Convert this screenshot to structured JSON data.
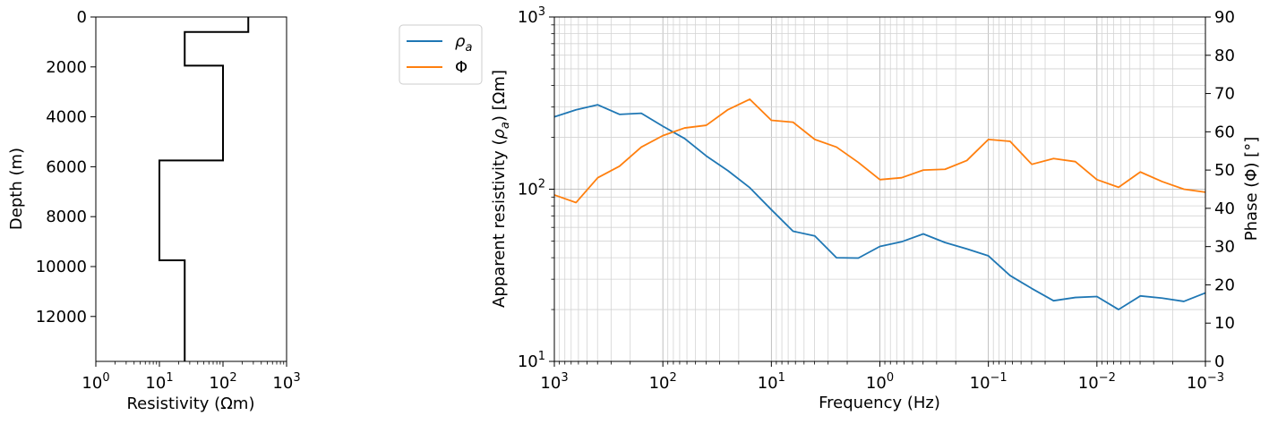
{
  "chart_data": [
    {
      "type": "line",
      "title": "",
      "xlabel": "Resistivity (Ωm)",
      "ylabel": "Depth (m)",
      "xscale": "log",
      "xlim": [
        1,
        1000
      ],
      "ylim": [
        13800,
        0
      ],
      "x_ticks": [
        1,
        10,
        100,
        1000
      ],
      "x_tick_labels": [
        {
          "base": "10",
          "exp": "0"
        },
        {
          "base": "10",
          "exp": "1"
        },
        {
          "base": "10",
          "exp": "2"
        },
        {
          "base": "10",
          "exp": "3"
        }
      ],
      "y_ticks": [
        0,
        2000,
        4000,
        6000,
        8000,
        10000,
        12000
      ],
      "y_tick_labels": [
        "0",
        "2000",
        "4000",
        "6000",
        "8000",
        "10000",
        "12000"
      ],
      "grid": false,
      "series": [
        {
          "color": "#000000",
          "step_profile": [
            {
              "depth": 0,
              "resistivity": 250
            },
            {
              "depth": 600,
              "resistivity": 250
            },
            {
              "depth": 600,
              "resistivity": 25
            },
            {
              "depth": 1950,
              "resistivity": 25
            },
            {
              "depth": 1950,
              "resistivity": 100
            },
            {
              "depth": 5750,
              "resistivity": 100
            },
            {
              "depth": 5750,
              "resistivity": 10
            },
            {
              "depth": 9750,
              "resistivity": 10
            },
            {
              "depth": 9750,
              "resistivity": 25
            },
            {
              "depth": 13800,
              "resistivity": 25
            }
          ]
        }
      ]
    },
    {
      "type": "line",
      "title": "",
      "xlabel": "Frequency (Hz)",
      "ylabel": "Apparent resistivity (ρa) [Ωm]",
      "ylabel_parts": {
        "pre": "Apparent resistivity (",
        "sym": "ρ",
        "sub": "a",
        "post": ") [Ωm]"
      },
      "y2label": "Phase (Φ) [°]",
      "xscale": "log",
      "x_reversed": true,
      "xlim": [
        1000,
        0.001
      ],
      "yscale": "log",
      "ylim": [
        10,
        1000
      ],
      "y2lim": [
        0,
        90
      ],
      "grid": true,
      "legend_position": "outside upper-left",
      "x_ticks": [
        1000,
        100,
        10,
        1,
        0.1,
        0.01,
        0.001
      ],
      "x_tick_labels": [
        {
          "base": "10",
          "exp": "3"
        },
        {
          "base": "10",
          "exp": "2"
        },
        {
          "base": "10",
          "exp": "1"
        },
        {
          "base": "10",
          "exp": "0"
        },
        {
          "base": "10",
          "exp": "−1"
        },
        {
          "base": "10",
          "exp": "−2"
        },
        {
          "base": "10",
          "exp": "−3"
        }
      ],
      "y_ticks": [
        10,
        100,
        1000
      ],
      "y_tick_labels": [
        {
          "base": "10",
          "exp": "1"
        },
        {
          "base": "10",
          "exp": "2"
        },
        {
          "base": "10",
          "exp": "3"
        }
      ],
      "y2_ticks": [
        0,
        10,
        20,
        30,
        40,
        50,
        60,
        70,
        80,
        90
      ],
      "y2_tick_labels": [
        "0",
        "10",
        "20",
        "30",
        "40",
        "50",
        "60",
        "70",
        "80",
        "90"
      ],
      "frequencies": [
        1000,
        631,
        398,
        251,
        158,
        100,
        63.1,
        39.8,
        25.1,
        15.8,
        10,
        6.31,
        3.98,
        2.51,
        1.58,
        1,
        0.631,
        0.398,
        0.251,
        0.158,
        0.1,
        0.0631,
        0.0398,
        0.0251,
        0.0158,
        0.01,
        0.00631,
        0.00398,
        0.00251,
        0.00158,
        0.001
      ],
      "series": [
        {
          "name": "ρa",
          "legend_label": {
            "sym": "ρ",
            "sub": "a"
          },
          "axis": "left",
          "color": "#1f77b4",
          "values": [
            263,
            289,
            309,
            272,
            276,
            232,
            197,
            156,
            128,
            102,
            76,
            57,
            53.5,
            40,
            39.8,
            46.5,
            49.5,
            55,
            49,
            45,
            41,
            31.5,
            26.5,
            22.5,
            23.5,
            23.8,
            20,
            24,
            23.3,
            22.3,
            25
          ]
        },
        {
          "name": "Φ",
          "legend_label": {
            "sym": "Φ",
            "sub": ""
          },
          "axis": "right",
          "color": "#ff7f0e",
          "values": [
            43.5,
            41.5,
            48,
            51,
            56,
            59,
            61,
            61.7,
            65.8,
            68.5,
            63,
            62.5,
            58,
            56,
            52,
            47.5,
            48,
            50,
            50.2,
            52.5,
            58,
            57.5,
            51.5,
            53,
            52.2,
            47.5,
            45.5,
            49.5,
            47,
            45,
            44.2
          ]
        }
      ]
    }
  ]
}
